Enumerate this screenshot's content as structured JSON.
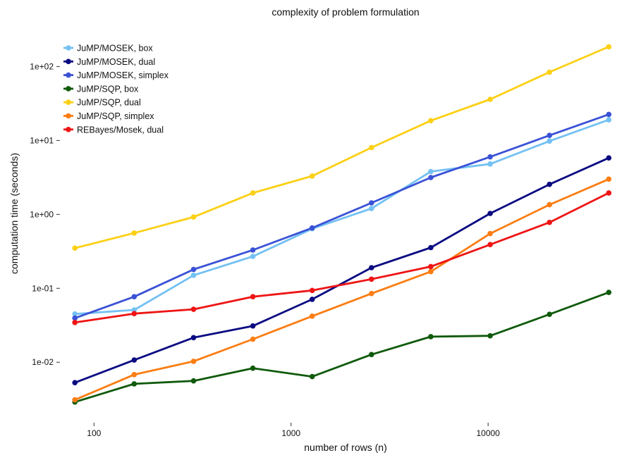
{
  "chart_data": {
    "type": "line",
    "title": "complexity of problem formulation",
    "xlabel": "number of rows (n)",
    "ylabel": "computation time (seconds)",
    "x_scale": "log10",
    "y_scale": "log10",
    "xlim": [
      70,
      47000
    ],
    "ylim": [
      0.0017,
      330
    ],
    "x_ticks": [
      100,
      1000,
      10000
    ],
    "x_tick_labels": [
      "100",
      "1000",
      "10000"
    ],
    "y_ticks": [
      0.01,
      0.1,
      1,
      10,
      100
    ],
    "y_tick_labels": [
      "1e-02",
      "1e-01",
      "1e+00",
      "1e+01",
      "1e+02"
    ],
    "grid": false,
    "legend_position": "top-left",
    "x": [
      80,
      160,
      320,
      640,
      1280,
      2560,
      5120,
      10240,
      20480,
      40960
    ],
    "series": [
      {
        "name": "JuMP/MOSEK, box",
        "color": "#74c1f3",
        "values": [
          0.045,
          0.051,
          0.15,
          0.27,
          0.64,
          1.2,
          3.8,
          4.8,
          9.8,
          19
        ]
      },
      {
        "name": "JuMP/MOSEK, dual",
        "color": "#0a0a82",
        "values": [
          0.0053,
          0.0107,
          0.0215,
          0.031,
          0.071,
          0.19,
          0.355,
          1.03,
          2.55,
          5.8
        ]
      },
      {
        "name": "JuMP/MOSEK, simplex",
        "color": "#3a52d6",
        "values": [
          0.0395,
          0.077,
          0.18,
          0.33,
          0.655,
          1.43,
          3.15,
          6.0,
          11.7,
          22.5
        ]
      },
      {
        "name": "JuMP/SQP, box",
        "color": "#0f5a0b",
        "values": [
          0.0029,
          0.0051,
          0.0056,
          0.0083,
          0.0064,
          0.0127,
          0.0222,
          0.0228,
          0.0445,
          0.088
        ]
      },
      {
        "name": "JuMP/SQP, dual",
        "color": "#fcd015",
        "values": [
          0.35,
          0.56,
          0.92,
          1.95,
          3.3,
          8.0,
          18.5,
          36,
          84,
          185
        ]
      },
      {
        "name": "JuMP/SQP, simplex",
        "color": "#fb7d12",
        "values": [
          0.0031,
          0.0068,
          0.0103,
          0.0205,
          0.042,
          0.085,
          0.168,
          0.55,
          1.35,
          3.0
        ]
      },
      {
        "name": "REBayes/Mosek, dual",
        "color": "#ee1414",
        "values": [
          0.0345,
          0.0455,
          0.052,
          0.077,
          0.0935,
          0.133,
          0.197,
          0.39,
          0.78,
          1.95
        ]
      }
    ]
  }
}
